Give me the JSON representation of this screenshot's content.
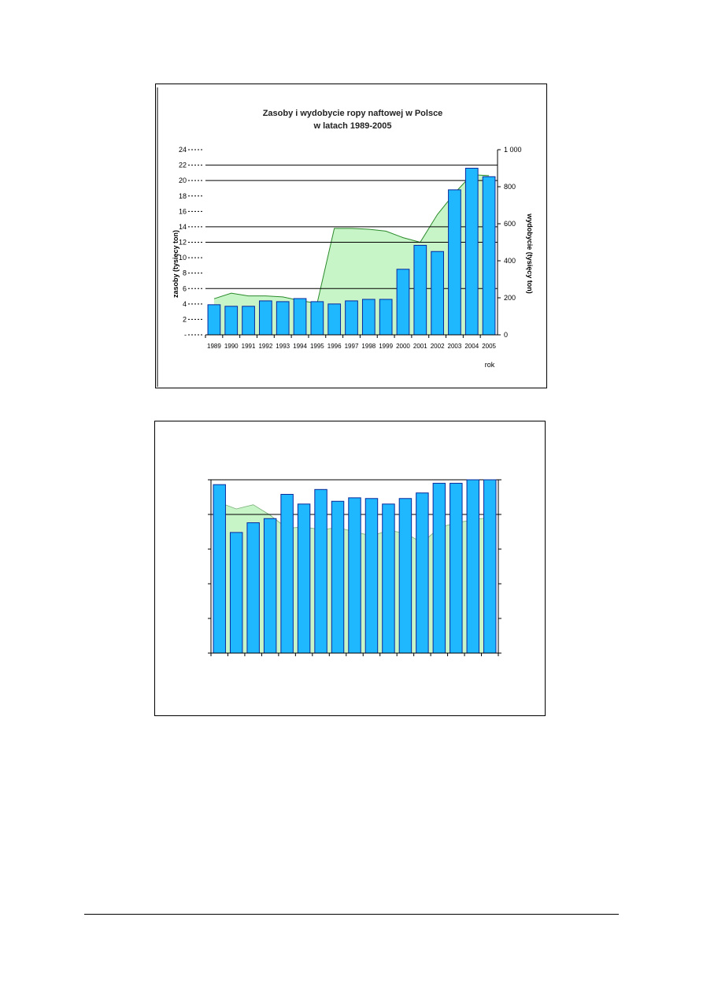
{
  "chart_data": [
    {
      "type": "bar",
      "title": "Zasoby i wydobycie ropy naftowej w Polsce",
      "subtitle": "w latach 1989-2005",
      "xlabel": "rok",
      "ylabel": "zasoby (tysięcy ton)",
      "y2label": "wydobycie (tysięcy ton)",
      "ylim": [
        0,
        24
      ],
      "y2lim": [
        0,
        1000
      ],
      "yticks": [
        "-",
        "2",
        "4",
        "6",
        "8",
        "10",
        "12",
        "14",
        "16",
        "18",
        "20",
        "22",
        "24"
      ],
      "y2ticks": [
        "0",
        "200",
        "400",
        "600",
        "800",
        "1 000"
      ],
      "grid": true,
      "categories": [
        "1989",
        "1990",
        "1991",
        "1992",
        "1993",
        "1994",
        "1995",
        "1996",
        "1997",
        "1998",
        "1999",
        "2000",
        "2001",
        "2002",
        "2003",
        "2004",
        "2005"
      ],
      "series": [
        {
          "kind": "bar",
          "axis": "left",
          "color": "#1fb8ff",
          "values": [
            3.9,
            3.7,
            3.7,
            4.4,
            4.3,
            4.7,
            4.3,
            4.0,
            4.4,
            4.6,
            4.6,
            8.5,
            11.6,
            10.8,
            18.8,
            21.6,
            20.5
          ]
        },
        {
          "kind": "area",
          "axis": "right",
          "color": "#c8f5c8",
          "values": [
            195,
            225,
            210,
            210,
            205,
            185,
            170,
            575,
            575,
            570,
            560,
            525,
            500,
            650,
            765,
            865,
            860
          ]
        }
      ]
    },
    {
      "type": "bar",
      "ylim": [
        0,
        25
      ],
      "grid": true,
      "series": [
        {
          "kind": "bar",
          "color": "#1fb8ff",
          "values": [
            24.3,
            17.4,
            18.8,
            19.4,
            22.9,
            21.5,
            23.6,
            21.9,
            22.4,
            22.3,
            21.5,
            22.3,
            23.1,
            24.5,
            24.5,
            25.0,
            25.0
          ]
        },
        {
          "kind": "area",
          "color": "#c8f5c8",
          "values": [
            21.7,
            20.8,
            21.4,
            19.9,
            18.0,
            18.2,
            17.8,
            18.1,
            17.5,
            16.9,
            17.7,
            17.3,
            15.9,
            18.1,
            18.8,
            19.2,
            19.6
          ]
        }
      ]
    }
  ]
}
